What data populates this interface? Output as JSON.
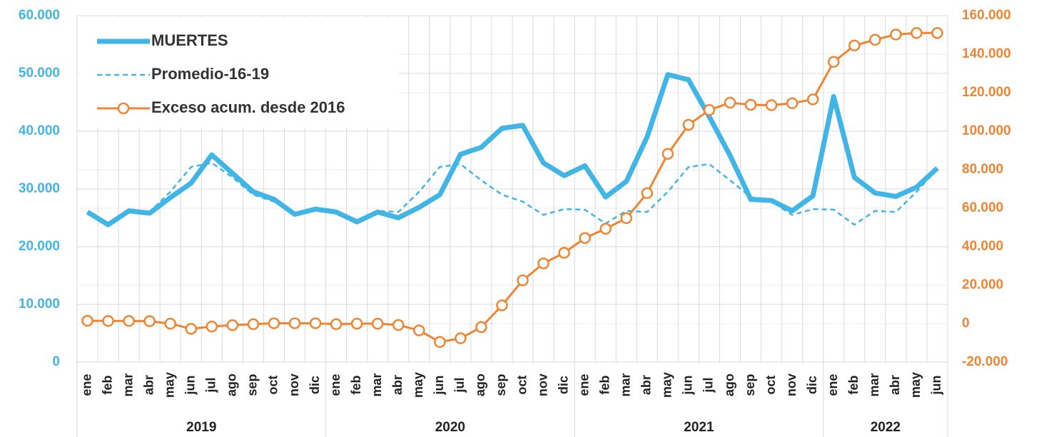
{
  "chart_data": {
    "type": "line",
    "categories": [
      "ene",
      "feb",
      "mar",
      "abr",
      "may",
      "jun",
      "jul",
      "ago",
      "sep",
      "oct",
      "nov",
      "dic",
      "ene",
      "feb",
      "mar",
      "abr",
      "may",
      "jun",
      "jul",
      "ago",
      "sep",
      "oct",
      "nov",
      "dic",
      "ene",
      "feb",
      "mar",
      "abr",
      "may",
      "jun",
      "jul",
      "ago",
      "sep",
      "oct",
      "nov",
      "dic",
      "ene",
      "feb",
      "mar",
      "abr",
      "may",
      "jun"
    ],
    "category_groups": [
      "2019",
      "2019",
      "2019",
      "2019",
      "2019",
      "2019",
      "2019",
      "2019",
      "2019",
      "2019",
      "2019",
      "2019",
      "2020",
      "2020",
      "2020",
      "2020",
      "2020",
      "2020",
      "2020",
      "2020",
      "2020",
      "2020",
      "2020",
      "2020",
      "2021",
      "2021",
      "2021",
      "2021",
      "2021",
      "2021",
      "2021",
      "2021",
      "2021",
      "2021",
      "2021",
      "2021",
      "2022",
      "2022",
      "2022",
      "2022",
      "2022",
      "2022"
    ],
    "series": [
      {
        "name": "MUERTES",
        "color": "#41b6e6",
        "style": "solid",
        "axis": "y",
        "values": [
          26000,
          23800,
          26200,
          25800,
          28500,
          31000,
          35900,
          32700,
          29500,
          28200,
          25600,
          26500,
          26000,
          24300,
          26000,
          25000,
          26800,
          29000,
          36000,
          37200,
          40500,
          41000,
          34500,
          32300,
          34000,
          28600,
          31300,
          39000,
          49800,
          48900,
          42500,
          35800,
          28200,
          28000,
          26200,
          28800,
          46000,
          32000,
          29300,
          28700,
          30300,
          33600
        ]
      },
      {
        "name": "Promedio-16-19",
        "color": "#41b6e6",
        "style": "dashed",
        "axis": "y",
        "values": [
          26000,
          23800,
          26200,
          26000,
          29500,
          33800,
          34500,
          32000,
          29000,
          27800,
          25500,
          26500,
          26000,
          24300,
          26200,
          26000,
          29500,
          33800,
          34300,
          31500,
          29000,
          27800,
          25500,
          26500,
          26400,
          24000,
          26200,
          26000,
          29500,
          33800,
          34300,
          31500,
          28600,
          27800,
          25500,
          26500,
          26400,
          23800,
          26200,
          26000,
          29500,
          33500
        ]
      },
      {
        "name": "Exceso acum. desde 2016",
        "color": "#ef8533",
        "style": "marker",
        "axis": "y2",
        "values": [
          1500,
          1400,
          1400,
          1300,
          0,
          -2700,
          -1500,
          -800,
          -300,
          200,
          200,
          200,
          -300,
          0,
          0,
          -700,
          -3500,
          -9500,
          -7600,
          -1800,
          9500,
          22500,
          31300,
          36800,
          44500,
          49300,
          54800,
          67800,
          88200,
          103300,
          111000,
          114800,
          113700,
          113500,
          114500,
          116500,
          136000,
          144500,
          147500,
          150200,
          151000,
          151000
        ]
      }
    ],
    "ylim": [
      0,
      60000
    ],
    "yticks": [
      0,
      {
        "value": 10000,
        "label": "10.000"
      },
      {
        "value": 20000,
        "label": "20.000"
      },
      {
        "value": 30000,
        "label": "30.000"
      },
      {
        "value": 40000,
        "label": "40.000"
      },
      {
        "value": 50000,
        "label": "50.000"
      },
      {
        "value": 60000,
        "label": "60.000"
      }
    ],
    "y2lim": [
      -20000,
      160000
    ],
    "y2ticks": [
      {
        "value": -20000,
        "label": "-20.000"
      },
      0,
      {
        "value": 20000,
        "label": "20.000"
      },
      {
        "value": 40000,
        "label": "40.000"
      },
      {
        "value": 60000,
        "label": "60.000"
      },
      {
        "value": 80000,
        "label": "80.000"
      },
      {
        "value": 100000,
        "label": "100.000"
      },
      {
        "value": 120000,
        "label": "120.000"
      },
      {
        "value": 140000,
        "label": "140.000"
      },
      {
        "value": 160000,
        "label": "160.000"
      }
    ],
    "grid": true,
    "legend": "top-left"
  }
}
